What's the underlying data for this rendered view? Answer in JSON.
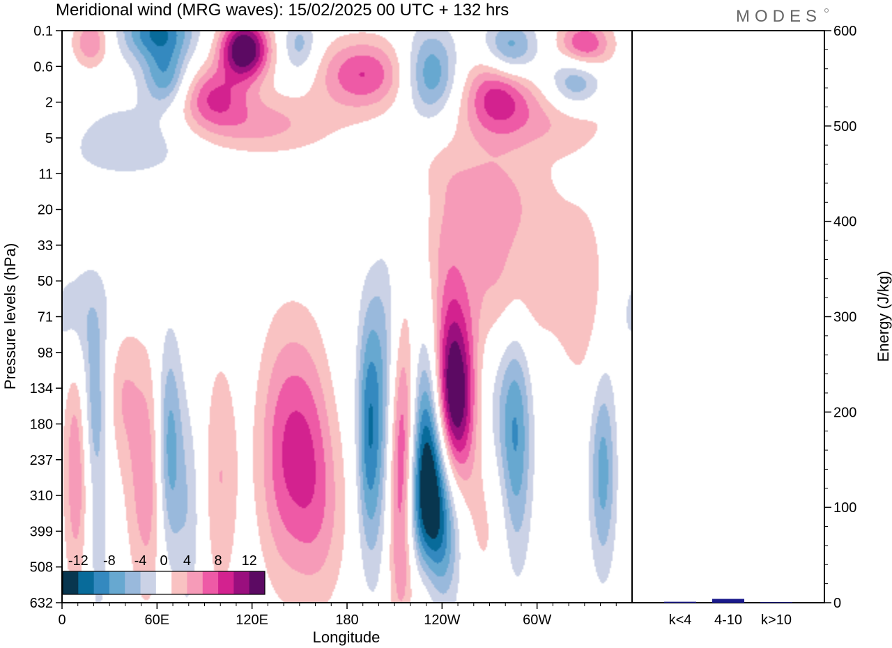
{
  "header": {
    "title": "Meridional wind (MRG waves):  15/02/2025  00 UTC  + 132 hrs",
    "logo": "MODES"
  },
  "chart_data": [
    {
      "type": "heatmap",
      "title": "Meridional wind (MRG waves):  15/02/2025  00 UTC  + 132 hrs",
      "xlabel": "Longitude",
      "ylabel": "Pressure levels (hPa)",
      "x_ticks": [
        "0",
        "60E",
        "120E",
        "180",
        "120W",
        "60W"
      ],
      "x_tick_lon": [
        0,
        60,
        120,
        180,
        240,
        300
      ],
      "xlim": [
        0,
        360
      ],
      "y_ticks": [
        "0.1",
        "0.6",
        "2",
        "5",
        "11",
        "20",
        "33",
        "50",
        "71",
        "98",
        "134",
        "180",
        "237",
        "310",
        "399",
        "508",
        "632"
      ],
      "y_scale": "categorical pressure levels, top to bottom",
      "colorbar": {
        "labels": [
          "-12",
          "-8",
          "-4",
          "0",
          "4",
          "8",
          "12"
        ],
        "levels": [
          -14,
          -12,
          -10,
          -8,
          -6,
          -4,
          -2,
          2,
          4,
          6,
          8,
          10,
          12,
          14
        ],
        "colors": [
          "#08364f",
          "#086b9a",
          "#3489bf",
          "#67a8d0",
          "#99b9dc",
          "#cbd2e6",
          "#ffffff",
          "#f9c2c2",
          "#f69bb8",
          "#ee5aa6",
          "#d3228f",
          "#9a0f7e",
          "#5c0a63"
        ]
      },
      "features": [
        {
          "lon": 215,
          "level": 12.0,
          "value": 20,
          "dlon": 9,
          "dlev": 2.7
        },
        {
          "lon": 229,
          "level": 12.3,
          "value": -20,
          "dlon": 10,
          "dlev": 2.7
        },
        {
          "lon": 247,
          "level": 10.3,
          "value": 16,
          "dlon": 10,
          "dlev": 1.6
        },
        {
          "lon": 205,
          "level": 11.2,
          "value": -12,
          "dlon": 8,
          "dlev": 3.0
        },
        {
          "lon": 193,
          "level": 11.2,
          "value": -7,
          "dlon": 5,
          "dlev": 2.3
        },
        {
          "lon": 228,
          "level": 15.5,
          "value": 10,
          "dlon": 10,
          "dlev": 1.3
        },
        {
          "lon": 240,
          "level": 14.5,
          "value": -6,
          "dlon": 9,
          "dlev": 1.5
        },
        {
          "lon": 222,
          "level": 15.0,
          "value": -5,
          "dlon": 6,
          "dlev": 2.0
        },
        {
          "lon": 242,
          "level": 7.5,
          "value": 4,
          "dlon": 10,
          "dlev": 2.0
        },
        {
          "lon": 287,
          "level": 11.6,
          "value": -7,
          "dlon": 7,
          "dlev": 2.5
        },
        {
          "lon": 273,
          "level": 11.0,
          "value": -4,
          "dlon": 12,
          "dlev": 1.8
        },
        {
          "lon": 268,
          "level": 13.0,
          "value": 3.5,
          "dlon": 12,
          "dlev": 2.0
        },
        {
          "lon": 342,
          "level": 12.3,
          "value": -7,
          "dlon": 6,
          "dlev": 2.0
        },
        {
          "lon": 140,
          "level": 11.8,
          "value": 7,
          "dlon": 12,
          "dlev": 2.5
        },
        {
          "lon": 157,
          "level": 11.5,
          "value": 4,
          "dlon": 10,
          "dlev": 2.3
        },
        {
          "lon": 165,
          "level": 13.5,
          "value": 3.5,
          "dlon": 12,
          "dlev": 2.0
        },
        {
          "lon": 67,
          "level": 11.8,
          "value": -9,
          "dlon": 6,
          "dlev": 2.2
        },
        {
          "lon": 55,
          "level": 12.5,
          "value": 6,
          "dlon": 10,
          "dlev": 2.4
        },
        {
          "lon": 100,
          "level": 12.5,
          "value": 4,
          "dlon": 8,
          "dlev": 2.5
        },
        {
          "lon": 20,
          "level": 10.6,
          "value": -5.5,
          "dlon": 6,
          "dlev": 1.5
        },
        {
          "lon": 9,
          "level": 12.2,
          "value": 6,
          "dlon": 6,
          "dlev": 2.5
        },
        {
          "lon": 37,
          "level": 10.0,
          "value": 3.5,
          "dlon": 8,
          "dlev": 1.5
        },
        {
          "lon": 80,
          "level": 13.5,
          "value": -3.5,
          "dlon": 6,
          "dlev": 2.2
        },
        {
          "lon": 22,
          "level": 14.5,
          "value": -3,
          "dlon": 6,
          "dlev": 2.0
        },
        {
          "lon": 12,
          "level": 8.0,
          "value": -4,
          "dlon": 15,
          "dlev": 1.2
        },
        {
          "lon": 280,
          "level": 7.0,
          "value": 4.5,
          "dlon": 25,
          "dlev": 1.5
        },
        {
          "lon": 330,
          "level": 7.5,
          "value": 3,
          "dlon": 12,
          "dlev": 2.0
        },
        {
          "lon": 260,
          "level": 4.6,
          "value": 5.5,
          "dlon": 32,
          "dlev": 0.9
        },
        {
          "lon": 178,
          "level": 5.0,
          "value": 4,
          "dlon": 26,
          "dlev": 0.8
        },
        {
          "lon": 210,
          "level": 4.8,
          "value": -3.5,
          "dlon": 45,
          "dlev": 0.7
        },
        {
          "lon": 40,
          "level": 3.0,
          "value": -4,
          "dlon": 35,
          "dlev": 0.8
        },
        {
          "lon": 120,
          "level": 2.6,
          "value": 5,
          "dlon": 35,
          "dlev": 0.6
        },
        {
          "lon": 310,
          "level": 2.5,
          "value": 4,
          "dlon": 40,
          "dlev": 0.7
        },
        {
          "lon": 115,
          "level": 0.5,
          "value": 15,
          "dlon": 11,
          "dlev": 0.6
        },
        {
          "lon": 95,
          "level": 1.8,
          "value": 7,
          "dlon": 15,
          "dlev": 0.6
        },
        {
          "lon": 60,
          "level": 0.0,
          "value": -10,
          "dlon": 16,
          "dlev": 0.6
        },
        {
          "lon": 65,
          "level": 1.3,
          "value": -7,
          "dlon": 10,
          "dlev": 0.6
        },
        {
          "lon": 150,
          "level": 0.4,
          "value": -5,
          "dlon": 8,
          "dlev": 0.6
        },
        {
          "lon": 190,
          "level": 1.2,
          "value": 8,
          "dlon": 20,
          "dlev": 0.7
        },
        {
          "lon": 233,
          "level": 1.2,
          "value": -8,
          "dlon": 12,
          "dlev": 0.9
        },
        {
          "lon": 275,
          "level": 1.7,
          "value": 8,
          "dlon": 15,
          "dlev": 0.8
        },
        {
          "lon": 283,
          "level": 0.5,
          "value": -8,
          "dlon": 12,
          "dlev": 0.6
        },
        {
          "lon": 330,
          "level": 0.4,
          "value": 9,
          "dlon": 12,
          "dlev": 0.5
        },
        {
          "lon": 325,
          "level": 1.4,
          "value": -7,
          "dlon": 12,
          "dlev": 0.6
        },
        {
          "lon": 18,
          "level": 0.3,
          "value": 6,
          "dlon": 8,
          "dlev": 0.5
        }
      ]
    },
    {
      "type": "bar",
      "categories": [
        "k<4",
        "4-10",
        "k>10"
      ],
      "values": [
        1,
        4,
        0.5
      ],
      "ylabel": "Energy (J/kg)",
      "ylim": [
        0,
        600
      ],
      "y_ticks": [
        "0",
        "100",
        "200",
        "300",
        "400",
        "500",
        "600"
      ],
      "color": "#1a1a8c"
    }
  ]
}
